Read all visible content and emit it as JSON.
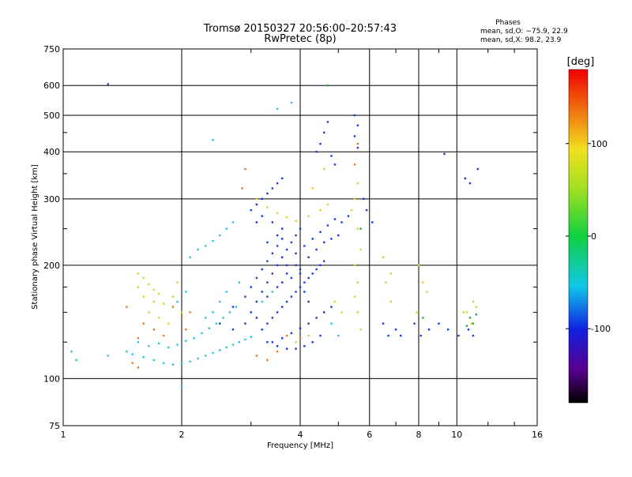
{
  "chart_data": {
    "type": "scatter",
    "title": "Tromsø 20150327 20:56:00–20:57:43",
    "subtitle": "RwPretec (8p)",
    "xlabel": "Frequency [MHz]",
    "ylabel": "Stationary phase Virtual Height [km]",
    "x_scale": "log",
    "y_scale": "log",
    "xlim": [
      1,
      16
    ],
    "ylim": [
      75,
      750
    ],
    "x_ticks": [
      1,
      2,
      4,
      8,
      16
    ],
    "x_minor_ticks": [
      6,
      10
    ],
    "y_ticks": [
      75,
      100,
      200,
      300,
      400,
      500,
      600,
      750
    ],
    "grid": true,
    "phase_legend": {
      "heading": "Phases",
      "line_o": "mean, sd,O:  −75.9, 22.9",
      "line_x": "mean, sd,X:   98.2, 23.9"
    },
    "colorbar": {
      "label": "[deg]",
      "range": [
        -180,
        180
      ],
      "ticks": [
        100,
        0,
        -100
      ]
    },
    "series": [
      {
        "color": "#e8d020",
        "points": [
          [
            1.55,
            190
          ],
          [
            1.6,
            185
          ],
          [
            1.65,
            178
          ],
          [
            1.7,
            172
          ],
          [
            1.75,
            168
          ],
          [
            1.6,
            165
          ],
          [
            1.7,
            160
          ],
          [
            1.8,
            158
          ],
          [
            1.65,
            150
          ],
          [
            1.75,
            145
          ],
          [
            1.85,
            140
          ],
          [
            1.55,
            175
          ],
          [
            1.9,
            165
          ],
          [
            1.95,
            180
          ],
          [
            2.0,
            150
          ],
          [
            3.1,
            300
          ],
          [
            3.3,
            285
          ],
          [
            3.5,
            275
          ],
          [
            3.7,
            268
          ],
          [
            3.9,
            262
          ],
          [
            4.2,
            270
          ],
          [
            4.5,
            280
          ],
          [
            4.7,
            290
          ],
          [
            4.3,
            320
          ],
          [
            4.6,
            360
          ],
          [
            5.6,
            330
          ],
          [
            5.5,
            300
          ],
          [
            5.4,
            280
          ],
          [
            5.6,
            250
          ],
          [
            5.7,
            220
          ],
          [
            5.5,
            200
          ],
          [
            5.6,
            180
          ],
          [
            5.5,
            165
          ],
          [
            5.6,
            150
          ],
          [
            5.7,
            135
          ],
          [
            6.6,
            180
          ],
          [
            6.8,
            160
          ],
          [
            8.0,
            200
          ],
          [
            8.2,
            180
          ],
          [
            7.9,
            150
          ],
          [
            10.6,
            150
          ],
          [
            10.9,
            140
          ],
          [
            11.2,
            155
          ],
          [
            4.9,
            160
          ],
          [
            5.1,
            150
          ],
          [
            4.2,
            130
          ],
          [
            3.9,
            125
          ]
        ]
      },
      {
        "color": "#f07818",
        "points": [
          [
            1.6,
            140
          ],
          [
            1.7,
            135
          ],
          [
            1.55,
            128
          ],
          [
            1.8,
            130
          ],
          [
            2.0,
            145
          ],
          [
            2.05,
            135
          ],
          [
            2.1,
            150
          ],
          [
            1.9,
            155
          ],
          [
            1.5,
            110
          ],
          [
            1.55,
            107
          ],
          [
            3.1,
            115
          ],
          [
            3.3,
            112
          ],
          [
            3.5,
            118
          ],
          [
            2.9,
            360
          ],
          [
            2.85,
            320
          ],
          [
            3.7,
            130
          ],
          [
            4.0,
            128
          ],
          [
            5.5,
            370
          ],
          [
            5.6,
            420
          ],
          [
            1.45,
            155
          ]
        ]
      },
      {
        "color": "#20c8d8",
        "points": [
          [
            1.45,
            118
          ],
          [
            1.5,
            116
          ],
          [
            1.6,
            114
          ],
          [
            1.7,
            112
          ],
          [
            1.8,
            110
          ],
          [
            1.9,
            109
          ],
          [
            2.0,
            110
          ],
          [
            2.1,
            111
          ],
          [
            2.2,
            113
          ],
          [
            2.3,
            115
          ],
          [
            2.4,
            117
          ],
          [
            2.5,
            119
          ],
          [
            2.6,
            121
          ],
          [
            2.7,
            123
          ],
          [
            2.8,
            125
          ],
          [
            2.9,
            127
          ],
          [
            3.0,
            129
          ],
          [
            1.55,
            125
          ],
          [
            1.65,
            122
          ],
          [
            1.75,
            124
          ],
          [
            1.85,
            121
          ],
          [
            1.95,
            123
          ],
          [
            2.05,
            126
          ],
          [
            2.15,
            128
          ],
          [
            2.25,
            132
          ],
          [
            2.35,
            136
          ],
          [
            2.45,
            140
          ],
          [
            2.55,
            145
          ],
          [
            2.65,
            150
          ],
          [
            2.75,
            155
          ],
          [
            2.1,
            210
          ],
          [
            2.2,
            220
          ],
          [
            2.3,
            225
          ],
          [
            2.4,
            232
          ],
          [
            2.5,
            240
          ],
          [
            2.6,
            250
          ],
          [
            2.7,
            260
          ],
          [
            2.3,
            145
          ],
          [
            2.4,
            150
          ],
          [
            2.5,
            160
          ],
          [
            1.95,
            160
          ],
          [
            2.05,
            170
          ],
          [
            2.6,
            170
          ],
          [
            2.8,
            180
          ],
          [
            2.0,
            95
          ],
          [
            1.05,
            118
          ],
          [
            1.08,
            112
          ],
          [
            1.3,
            115
          ],
          [
            3.2,
            160
          ],
          [
            3.4,
            170
          ],
          [
            4.6,
            150
          ],
          [
            4.8,
            140
          ],
          [
            5.0,
            130
          ],
          [
            3.8,
            540
          ],
          [
            3.5,
            520
          ],
          [
            2.4,
            430
          ]
        ]
      },
      {
        "color": "#1838e0",
        "points": [
          [
            3.0,
            150
          ],
          [
            3.1,
            160
          ],
          [
            3.2,
            170
          ],
          [
            3.3,
            180
          ],
          [
            3.4,
            190
          ],
          [
            3.5,
            200
          ],
          [
            3.6,
            210
          ],
          [
            3.7,
            220
          ],
          [
            3.8,
            230
          ],
          [
            3.9,
            240
          ],
          [
            4.0,
            250
          ],
          [
            3.2,
            135
          ],
          [
            3.3,
            140
          ],
          [
            3.4,
            145
          ],
          [
            3.5,
            150
          ],
          [
            3.6,
            155
          ],
          [
            3.7,
            160
          ],
          [
            3.8,
            165
          ],
          [
            3.9,
            170
          ],
          [
            4.0,
            175
          ],
          [
            4.1,
            180
          ],
          [
            4.2,
            185
          ],
          [
            4.3,
            190
          ],
          [
            4.4,
            195
          ],
          [
            4.5,
            200
          ],
          [
            4.6,
            205
          ],
          [
            3.4,
            125
          ],
          [
            3.6,
            128
          ],
          [
            3.8,
            132
          ],
          [
            4.0,
            136
          ],
          [
            4.2,
            140
          ],
          [
            4.4,
            145
          ],
          [
            4.6,
            150
          ],
          [
            4.8,
            155
          ],
          [
            3.1,
            290
          ],
          [
            3.2,
            300
          ],
          [
            3.3,
            310
          ],
          [
            3.4,
            320
          ],
          [
            3.5,
            330
          ],
          [
            3.6,
            340
          ],
          [
            3.2,
            270
          ],
          [
            3.4,
            260
          ],
          [
            3.6,
            250
          ],
          [
            3.1,
            260
          ],
          [
            3.0,
            280
          ],
          [
            3.3,
            230
          ],
          [
            3.5,
            240
          ],
          [
            3.7,
            200
          ],
          [
            3.9,
            215
          ],
          [
            4.1,
            225
          ],
          [
            4.3,
            235
          ],
          [
            4.5,
            245
          ],
          [
            4.7,
            255
          ],
          [
            4.9,
            265
          ],
          [
            5.1,
            260
          ],
          [
            5.3,
            270
          ],
          [
            4.7,
            480
          ],
          [
            4.6,
            450
          ],
          [
            4.5,
            420
          ],
          [
            4.4,
            400
          ],
          [
            4.8,
            390
          ],
          [
            4.9,
            370
          ],
          [
            5.5,
            500
          ],
          [
            5.6,
            470
          ],
          [
            5.5,
            440
          ],
          [
            5.6,
            410
          ],
          [
            3.9,
            200
          ],
          [
            4.0,
            190
          ],
          [
            4.1,
            170
          ],
          [
            4.2,
            160
          ],
          [
            3.7,
            190
          ],
          [
            3.5,
            175
          ],
          [
            3.3,
            165
          ],
          [
            3.1,
            145
          ],
          [
            2.9,
            140
          ],
          [
            2.7,
            135
          ],
          [
            2.5,
            140
          ],
          [
            2.7,
            155
          ],
          [
            2.9,
            165
          ],
          [
            3.0,
            175
          ],
          [
            3.1,
            185
          ],
          [
            3.2,
            195
          ],
          [
            3.3,
            205
          ],
          [
            3.4,
            215
          ],
          [
            3.5,
            225
          ],
          [
            3.6,
            235
          ],
          [
            4.5,
            130
          ],
          [
            4.3,
            125
          ],
          [
            4.1,
            122
          ],
          [
            3.9,
            120
          ],
          [
            3.7,
            120
          ],
          [
            3.5,
            122
          ],
          [
            3.3,
            125
          ],
          [
            3.6,
            180
          ],
          [
            3.8,
            185
          ],
          [
            4.0,
            195
          ],
          [
            4.2,
            210
          ],
          [
            4.4,
            220
          ],
          [
            4.6,
            230
          ],
          [
            4.8,
            235
          ],
          [
            5.0,
            240
          ],
          [
            1.3,
            605
          ],
          [
            9.3,
            395
          ],
          [
            10.5,
            340
          ],
          [
            10.8,
            330
          ],
          [
            11.3,
            360
          ],
          [
            6.5,
            140
          ],
          [
            6.7,
            130
          ],
          [
            7.0,
            135
          ],
          [
            7.2,
            130
          ],
          [
            7.8,
            140
          ],
          [
            8.1,
            130
          ],
          [
            8.5,
            135
          ],
          [
            9.0,
            140
          ],
          [
            9.5,
            135
          ],
          [
            10.1,
            130
          ],
          [
            10.7,
            135
          ],
          [
            11.0,
            130
          ],
          [
            5.8,
            300
          ],
          [
            5.9,
            280
          ],
          [
            6.1,
            260
          ]
        ]
      },
      {
        "color": "#20b040",
        "points": [
          [
            10.8,
            145
          ],
          [
            11.0,
            140
          ],
          [
            11.2,
            148
          ],
          [
            10.6,
            138
          ],
          [
            8.2,
            145
          ],
          [
            5.7,
            250
          ],
          [
            4.7,
            600
          ]
        ]
      },
      {
        "color": "#b0e030",
        "points": [
          [
            10.4,
            150
          ],
          [
            11.0,
            160
          ],
          [
            8.4,
            170
          ],
          [
            6.5,
            210
          ],
          [
            6.8,
            190
          ]
        ]
      }
    ]
  }
}
